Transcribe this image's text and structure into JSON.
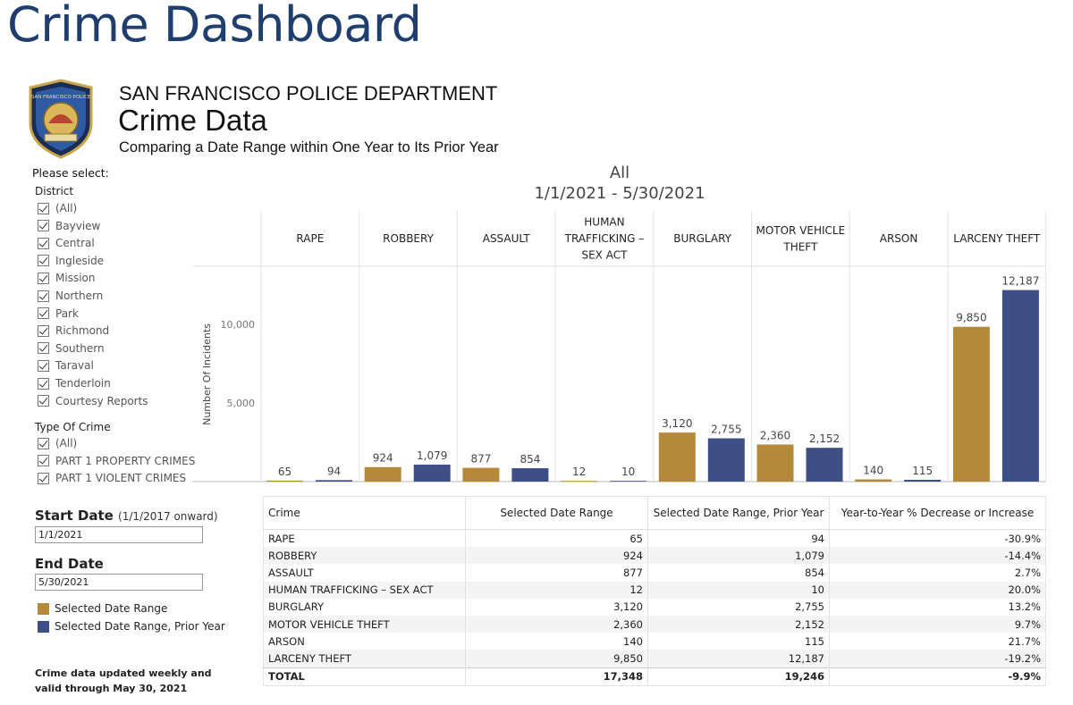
{
  "header": {
    "page_title": "Crime Dashboard",
    "department": "SAN FRANCISCO POLICE DEPARTMENT",
    "title": "Crime Data",
    "subtitle": "Comparing a Date Range within One Year to Its Prior Year",
    "logo_text": "SAN FRANCISCO POLICE"
  },
  "filters": {
    "please_select": "Please select:",
    "district_label": "District",
    "districts": [
      "(All)",
      "Bayview",
      "Central",
      "Ingleside",
      "Mission",
      "Northern",
      "Park",
      "Richmond",
      "Southern",
      "Taraval",
      "Tenderloin",
      "Courtesy Reports"
    ],
    "crime_type_label": "Type Of Crime",
    "crime_types": [
      "(All)",
      "PART 1 PROPERTY CRIMES",
      "PART 1 VIOLENT CRIMES"
    ]
  },
  "dates": {
    "start_label": "Start Date",
    "start_hint": "(1/1/2017 onward)",
    "start_value": "1/1/2021",
    "end_label": "End Date",
    "end_value": "5/30/2021"
  },
  "legend": [
    {
      "label": "Selected Date Range",
      "color": "#b5893a"
    },
    {
      "label": "Selected Date Range, Prior Year",
      "color": "#3d4f85"
    }
  ],
  "footnote": [
    "Crime data updated weekly and",
    "valid through May 30, 2021"
  ],
  "chart_data": {
    "type": "bar",
    "title": "All",
    "subtitle": "1/1/2021 - 5/30/2021",
    "ylabel": "Number Of Incidents",
    "yticks": [
      5000,
      10000
    ],
    "ytick_labels": [
      "5,000",
      "10,000"
    ],
    "ylim": [
      0,
      13700
    ],
    "categories": [
      "RAPE",
      "ROBBERY",
      "ASSAULT",
      "HUMAN TRAFFICKING – SEX ACT",
      "BURGLARY",
      "MOTOR VEHICLE THEFT",
      "ARSON",
      "LARCENY THEFT"
    ],
    "category_lines": [
      [
        "RAPE"
      ],
      [
        "ROBBERY"
      ],
      [
        "ASSAULT"
      ],
      [
        "HUMAN",
        "TRAFFICKING –",
        "SEX ACT"
      ],
      [
        "BURGLARY"
      ],
      [
        "MOTOR VEHICLE",
        "THEFT"
      ],
      [
        "ARSON"
      ],
      [
        "LARCENY THEFT"
      ]
    ],
    "series": [
      {
        "name": "Selected Date Range",
        "color": "#b5893a",
        "values": [
          65,
          924,
          877,
          12,
          3120,
          2360,
          140,
          9850
        ],
        "labels": [
          "65",
          "924",
          "877",
          "12",
          "3,120",
          "2,360",
          "140",
          "9,850"
        ]
      },
      {
        "name": "Selected Date Range, Prior Year",
        "color": "#3d4f85",
        "values": [
          94,
          1079,
          854,
          10,
          2755,
          2152,
          115,
          12187
        ],
        "labels": [
          "94",
          "1,079",
          "854",
          "10",
          "2,755",
          "2,152",
          "115",
          "12,187"
        ]
      }
    ]
  },
  "table": {
    "headers": [
      "Crime",
      "Selected Date Range",
      "Selected Date Range, Prior Year",
      "Year-to-Year % Decrease or Increase"
    ],
    "rows": [
      [
        "RAPE",
        "65",
        "94",
        "-30.9%"
      ],
      [
        "ROBBERY",
        "924",
        "1,079",
        "-14.4%"
      ],
      [
        "ASSAULT",
        "877",
        "854",
        "2.7%"
      ],
      [
        "HUMAN TRAFFICKING – SEX ACT",
        "12",
        "10",
        "20.0%"
      ],
      [
        "BURGLARY",
        "3,120",
        "2,755",
        "13.2%"
      ],
      [
        "MOTOR VEHICLE THEFT",
        "2,360",
        "2,152",
        "9.7%"
      ],
      [
        "ARSON",
        "140",
        "115",
        "21.7%"
      ],
      [
        "LARCENY THEFT",
        "9,850",
        "12,187",
        "-19.2%"
      ]
    ],
    "total": [
      "TOTAL",
      "17,348",
      "19,246",
      "-9.9%"
    ]
  }
}
